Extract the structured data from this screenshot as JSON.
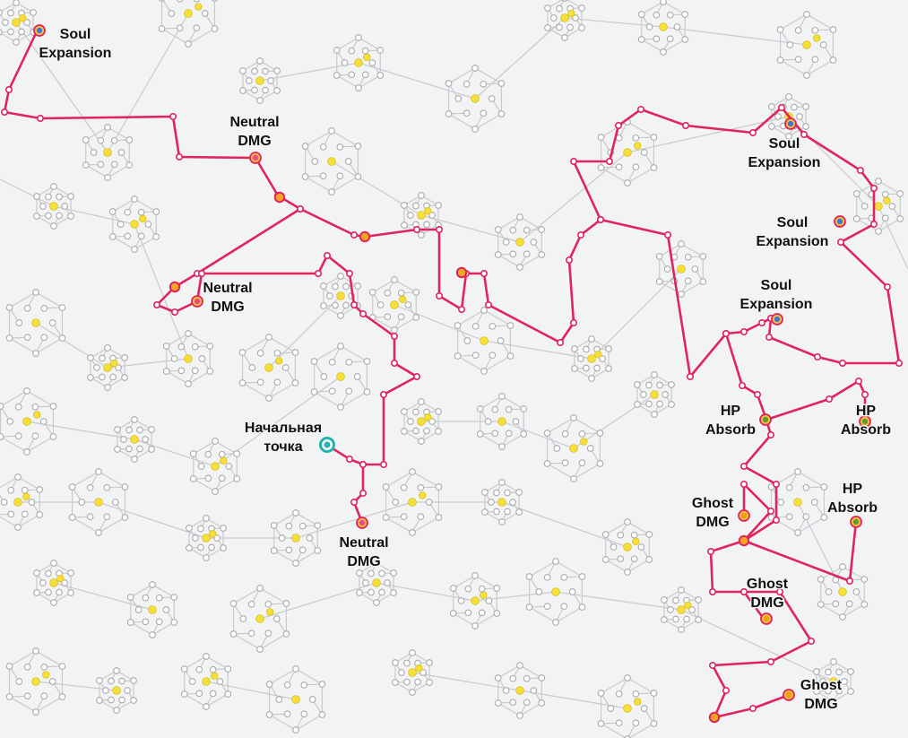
{
  "colors": {
    "background": "#f2f3f5",
    "allocated_path": "#e0245e",
    "minor_node": "#f6df3a",
    "soul_expansion": "#3a7bd5",
    "neutral_dmg": "#e94b8a",
    "hp_absorb": "#5aa02c",
    "ghost_dmg": "#f39c12",
    "start_node": "#1fb5ad"
  },
  "labels": {
    "soul_expansion": "Soul\nExpansion",
    "neutral_dmg": "Neutral\nDMG",
    "hp_absorb": "HP\nAbsorb",
    "ghost_dmg": "Ghost\nDMG",
    "start": "Начальная\nточка"
  },
  "notables": [
    {
      "id": "soul-expansion-1",
      "type": "soul_expansion",
      "label": "Soul\nExpansion"
    },
    {
      "id": "soul-expansion-2",
      "type": "soul_expansion",
      "label": "Soul\nExpansion"
    },
    {
      "id": "soul-expansion-3",
      "type": "soul_expansion",
      "label": "Soul\nExpansion"
    },
    {
      "id": "soul-expansion-4",
      "type": "soul_expansion",
      "label": "Soul\nExpansion"
    },
    {
      "id": "neutral-dmg-1",
      "type": "neutral_dmg",
      "label": "Neutral\nDMG"
    },
    {
      "id": "neutral-dmg-2",
      "type": "neutral_dmg",
      "label": "Neutral\nDMG"
    },
    {
      "id": "neutral-dmg-3",
      "type": "neutral_dmg",
      "label": "Neutral\nDMG"
    },
    {
      "id": "start-node",
      "type": "start",
      "label": "Начальная\nточка"
    },
    {
      "id": "hp-absorb-1",
      "type": "hp_absorb",
      "label": "HP\nAbsorb"
    },
    {
      "id": "hp-absorb-2",
      "type": "hp_absorb",
      "label": "HP\nAbsorb"
    },
    {
      "id": "hp-absorb-3",
      "type": "hp_absorb",
      "label": "HP\nAbsorb"
    },
    {
      "id": "ghost-dmg-1",
      "type": "ghost_dmg",
      "label": "Ghost\nDMG"
    },
    {
      "id": "ghost-dmg-2",
      "type": "ghost_dmg",
      "label": "Ghost\nDMG"
    },
    {
      "id": "ghost-dmg-3",
      "type": "ghost_dmg",
      "label": "Ghost\nDMG"
    }
  ]
}
